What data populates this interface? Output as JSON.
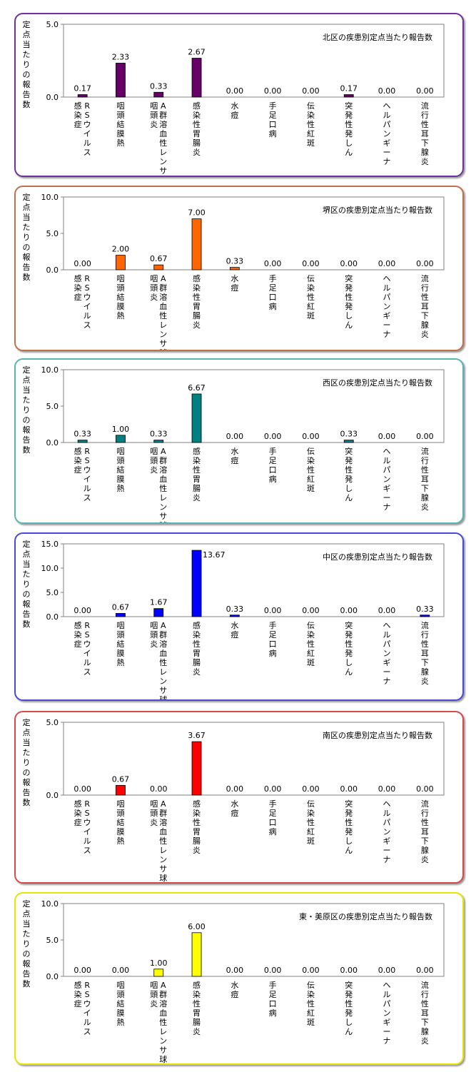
{
  "chart_data": [
    {
      "type": "bar",
      "title": "北区の疾患別定点当たり報告数",
      "ylabel": "定点当たりの報告数",
      "ylim": [
        0,
        5.0
      ],
      "yticks": [
        "0.0",
        "5.0"
      ],
      "color": "#660066",
      "border_color": "#7030a0",
      "categories": [
        "RSウイルス感染症",
        "咽頭結膜熱",
        "A群溶血性レンサ球菌咽頭炎",
        "感染性胃腸炎",
        "水痘",
        "手足口病",
        "伝染性紅斑",
        "突発性発しん",
        "ヘルパンギーナ",
        "流行性耳下腺炎"
      ],
      "values": [
        0.17,
        2.33,
        0.33,
        2.67,
        0.0,
        0.0,
        0.0,
        0.17,
        0.0,
        0.0
      ],
      "value_labels": [
        "0.17",
        "2.33",
        "0.33",
        "2.67",
        "0.00",
        "0.00",
        "0.00",
        "0.17",
        "0.00",
        "0.00"
      ]
    },
    {
      "type": "bar",
      "title": "堺区の疾患別定点当たり報告数",
      "ylabel": "定点当たりの報告数",
      "ylim": [
        0,
        10.0
      ],
      "yticks": [
        "0.0",
        "5.0",
        "10.0"
      ],
      "color": "#ff6600",
      "border_color": "#c0704a",
      "categories": [
        "RSウイルス感染症",
        "咽頭結膜熱",
        "A群溶血性レンサ球菌咽頭炎",
        "感染性胃腸炎",
        "水痘",
        "手足口病",
        "伝染性紅斑",
        "突発性発しん",
        "ヘルパンギーナ",
        "流行性耳下腺炎"
      ],
      "values": [
        0.0,
        2.0,
        0.67,
        7.0,
        0.33,
        0.0,
        0.0,
        0.0,
        0.0,
        0.0
      ],
      "value_labels": [
        "0.00",
        "2.00",
        "0.67",
        "7.00",
        "0.33",
        "0.00",
        "0.00",
        "0.00",
        "0.00",
        "0.00"
      ]
    },
    {
      "type": "bar",
      "title": "西区の疾患別定点当たり報告数",
      "ylabel": "定点当たりの報告数",
      "ylim": [
        0,
        10.0
      ],
      "yticks": [
        "0.0",
        "5.0",
        "10.0"
      ],
      "color": "#008080",
      "border_color": "#5ab4b4",
      "categories": [
        "RSウイルス感染症",
        "咽頭結膜熱",
        "A群溶血性レンサ球菌咽頭炎",
        "感染性胃腸炎",
        "水痘",
        "手足口病",
        "伝染性紅斑",
        "突発性発しん",
        "ヘルパンギーナ",
        "流行性耳下腺炎"
      ],
      "values": [
        0.33,
        1.0,
        0.33,
        6.67,
        0.0,
        0.0,
        0.0,
        0.33,
        0.0,
        0.0
      ],
      "value_labels": [
        "0.33",
        "1.00",
        "0.33",
        "6.67",
        "0.00",
        "0.00",
        "0.00",
        "0.33",
        "0.00",
        "0.00"
      ]
    },
    {
      "type": "bar",
      "title": "中区の疾患別定点当たり報告数",
      "ylabel": "定点当たりの報告数",
      "ylim": [
        0,
        15.0
      ],
      "yticks": [
        "0.0",
        "5.0",
        "10.0",
        "15.0"
      ],
      "color": "#0000ff",
      "border_color": "#4a4ad8",
      "categories": [
        "RSウイルス感染症",
        "咽頭結膜熱",
        "A群溶血性レンサ球菌咽頭炎",
        "感染性胃腸炎",
        "水痘",
        "手足口病",
        "伝染性紅斑",
        "突発性発しん",
        "ヘルパンギーナ",
        "流行性耳下腺炎"
      ],
      "values": [
        0.0,
        0.67,
        1.67,
        13.67,
        0.33,
        0.0,
        0.0,
        0.0,
        0.0,
        0.33
      ],
      "value_labels": [
        "0.00",
        "0.67",
        "1.67",
        "13.67",
        "0.33",
        "0.00",
        "0.00",
        "0.00",
        "0.00",
        "0.33"
      ]
    },
    {
      "type": "bar",
      "title": "南区の疾患別定点当たり報告数",
      "ylabel": "定点当たりの報告数",
      "ylim": [
        0,
        5.0
      ],
      "yticks": [
        "0.0",
        "5.0"
      ],
      "color": "#ff0000",
      "border_color": "#d84a4a",
      "categories": [
        "RSウイルス感染症",
        "咽頭結膜熱",
        "A群溶血性レンサ球菌咽頭炎",
        "感染性胃腸炎",
        "水痘",
        "手足口病",
        "伝染性紅斑",
        "突発性発しん",
        "ヘルパンギーナ",
        "流行性耳下腺炎"
      ],
      "values": [
        0.0,
        0.67,
        0.0,
        3.67,
        0.0,
        0.0,
        0.0,
        0.0,
        0.0,
        0.0
      ],
      "value_labels": [
        "0.00",
        "0.67",
        "0.00",
        "3.67",
        "0.00",
        "0.00",
        "0.00",
        "0.00",
        "0.00",
        "0.00"
      ]
    },
    {
      "type": "bar",
      "title": "東・美原区の疾患別定点当たり報告数",
      "ylabel": "定点当たりの報告数",
      "ylim": [
        0,
        10.0
      ],
      "yticks": [
        "0.0",
        "5.0",
        "10.0"
      ],
      "color": "#ffff00",
      "border_color": "#e6e600",
      "categories": [
        "RSウイルス感染症",
        "咽頭結膜熱",
        "A群溶血性レンサ球菌咽頭炎",
        "感染性胃腸炎",
        "水痘",
        "手足口病",
        "伝染性紅斑",
        "突発性発しん",
        "ヘルパンギーナ",
        "流行性耳下腺炎"
      ],
      "values": [
        0.0,
        0.0,
        1.0,
        6.0,
        0.0,
        0.0,
        0.0,
        0.0,
        0.0,
        0.0
      ],
      "value_labels": [
        "0.00",
        "0.00",
        "1.00",
        "6.00",
        "0.00",
        "0.00",
        "0.00",
        "0.00",
        "0.00",
        "0.00"
      ]
    }
  ]
}
